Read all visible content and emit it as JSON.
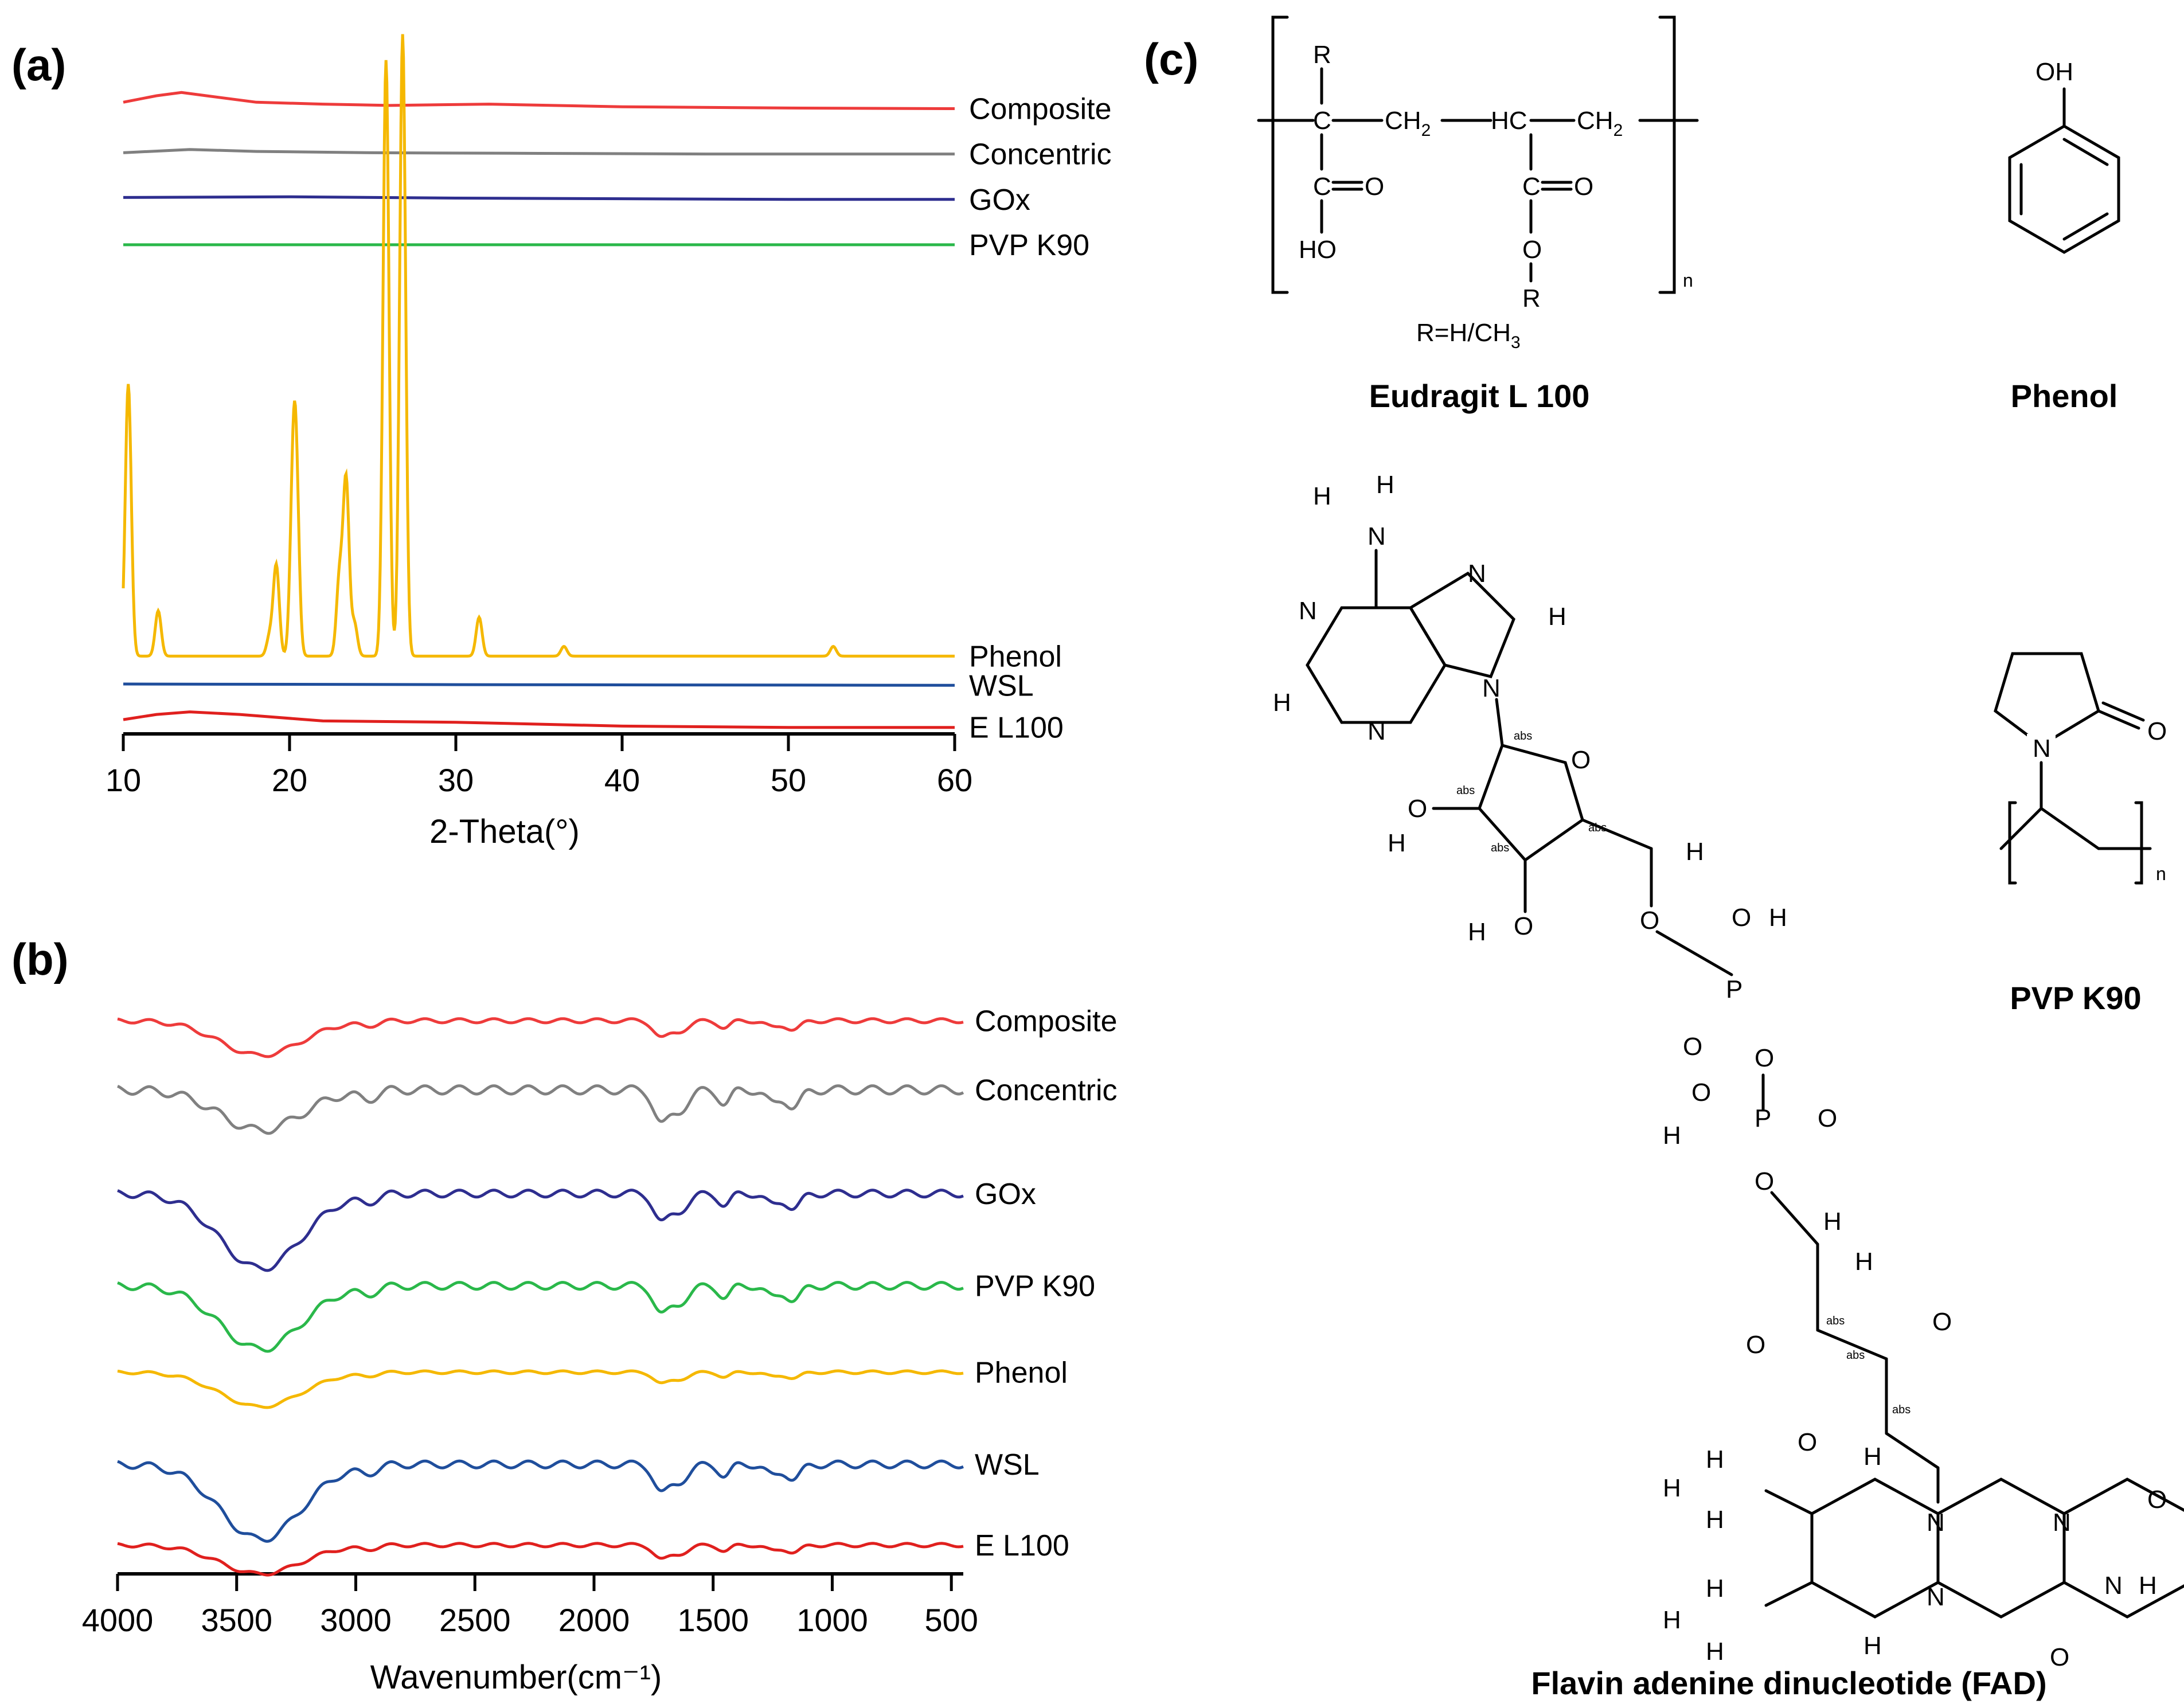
{
  "chart_data": [
    {
      "panel": "(a)",
      "type": "line",
      "title": "",
      "xlabel": "2-Theta(°)",
      "ylabel": "",
      "xlim": [
        10,
        60
      ],
      "x_ticks": [
        10,
        20,
        30,
        40,
        50,
        60
      ],
      "grid": false,
      "series": [
        {
          "name": "Composite",
          "color": "#ee3b3b",
          "baseline": 0.965,
          "points": [
            [
              10,
              0.975
            ],
            [
              12,
              0.985
            ],
            [
              13.5,
              0.99
            ],
            [
              15,
              0.985
            ],
            [
              18,
              0.975
            ],
            [
              22,
              0.972
            ],
            [
              26,
              0.97
            ],
            [
              32,
              0.972
            ],
            [
              40,
              0.968
            ],
            [
              50,
              0.966
            ],
            [
              60,
              0.965
            ]
          ]
        },
        {
          "name": "Concentric",
          "color": "#808080",
          "baseline": 0.895,
          "points": [
            [
              10,
              0.897
            ],
            [
              14,
              0.902
            ],
            [
              18,
              0.899
            ],
            [
              25,
              0.897
            ],
            [
              35,
              0.896
            ],
            [
              45,
              0.895
            ],
            [
              60,
              0.895
            ]
          ]
        },
        {
          "name": "GOx",
          "color": "#2e2e8f",
          "baseline": 0.825,
          "points": [
            [
              10,
              0.828
            ],
            [
              20,
              0.829
            ],
            [
              30,
              0.827
            ],
            [
              40,
              0.826
            ],
            [
              50,
              0.825
            ],
            [
              60,
              0.825
            ]
          ]
        },
        {
          "name": "PVP K90",
          "color": "#2ab84a",
          "baseline": 0.755,
          "points": [
            [
              10,
              0.755
            ],
            [
              60,
              0.755
            ]
          ]
        },
        {
          "name": "Phenol",
          "color": "#f5b800",
          "baseline": 0.12,
          "peaks": [
            [
              10.3,
              0.42
            ],
            [
              12.1,
              0.07
            ],
            [
              18.8,
              0.03
            ],
            [
              19.2,
              0.14
            ],
            [
              20.2,
              0.22
            ],
            [
              20.4,
              0.24
            ],
            [
              23.0,
              0.12
            ],
            [
              23.4,
              0.27
            ],
            [
              23.9,
              0.05
            ],
            [
              25.8,
              0.92
            ],
            [
              26.8,
              0.96
            ],
            [
              31.4,
              0.06
            ],
            [
              36.5,
              0.015
            ],
            [
              52.7,
              0.015
            ]
          ]
        },
        {
          "name": "WSL",
          "color": "#1f4e9c",
          "baseline": 0.075,
          "points": [
            [
              10,
              0.077
            ],
            [
              30,
              0.076
            ],
            [
              60,
              0.075
            ]
          ]
        },
        {
          "name": "E L100",
          "color": "#e0201e",
          "baseline": 0.01,
          "points": [
            [
              10,
              0.022
            ],
            [
              12,
              0.03
            ],
            [
              14,
              0.034
            ],
            [
              17,
              0.03
            ],
            [
              22,
              0.02
            ],
            [
              30,
              0.018
            ],
            [
              40,
              0.012
            ],
            [
              50,
              0.01
            ],
            [
              60,
              0.01
            ]
          ]
        }
      ]
    },
    {
      "panel": "(b)",
      "type": "line",
      "title": "",
      "xlabel": "Wavenumber(cm⁻¹)",
      "ylabel": "",
      "xlim": [
        4000,
        450
      ],
      "x_ticks": [
        4000,
        3500,
        3000,
        2500,
        2000,
        1500,
        1000,
        500
      ],
      "grid": false,
      "series": [
        {
          "name": "Composite",
          "color": "#ee3b3b",
          "offset": 0.94,
          "depth": 0.06,
          "scale": 0.6
        },
        {
          "name": "Concentric",
          "color": "#808080",
          "offset": 0.82,
          "depth": 0.07,
          "scale": 1.2
        },
        {
          "name": "GOx",
          "color": "#2e2e8f",
          "offset": 0.64,
          "depth": 0.13,
          "scale": 1.0
        },
        {
          "name": "PVP K90",
          "color": "#2ab84a",
          "offset": 0.48,
          "depth": 0.11,
          "scale": 1.0
        },
        {
          "name": "Phenol",
          "color": "#f5b800",
          "offset": 0.33,
          "depth": 0.06,
          "scale": 0.4
        },
        {
          "name": "WSL",
          "color": "#1f4e9c",
          "offset": 0.17,
          "depth": 0.13,
          "scale": 1.0
        },
        {
          "name": "E L100",
          "color": "#e0201e",
          "offset": 0.03,
          "depth": 0.05,
          "scale": 0.5
        }
      ]
    }
  ],
  "panels": {
    "a_label": "(a)",
    "b_label": "(b)",
    "c_label": "(c)"
  },
  "structures": {
    "eudragit": {
      "name": "Eudragit L 100",
      "r_note": "R=H/CH",
      "r_note_sub": "3",
      "repeat": "n",
      "atoms": {
        "r1": "R",
        "c1": "C",
        "ch2a": "CH",
        "ch2a_sub": "2",
        "hc": "HC",
        "ch2b": "CH",
        "ch2b_sub": "2",
        "c2": "C",
        "o1": "O",
        "ho": "HO",
        "c3": "C",
        "o2": "O",
        "o3": "O",
        "r2": "R"
      }
    },
    "phenol": {
      "name": "Phenol",
      "oh": "OH"
    },
    "pvp": {
      "name": "PVP K90",
      "n_atom": "N",
      "o_atom": "O",
      "repeat": "n"
    },
    "fad": {
      "name": "Flavin adenine dinucleotide (FAD)",
      "abs": "abs",
      "atoms": {
        "n": "N",
        "h": "H",
        "o": "O",
        "p": "P"
      }
    }
  }
}
